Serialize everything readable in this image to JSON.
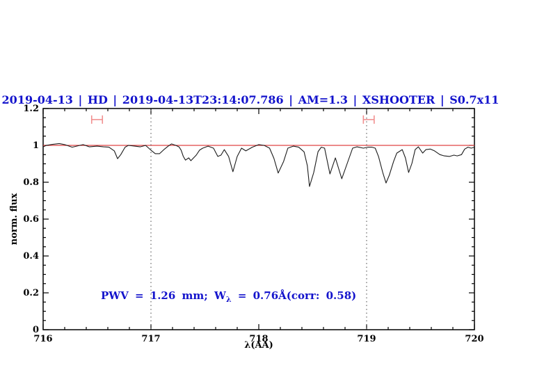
{
  "plot": {
    "title": "2019-04-13 | HD | 2019-04-13T23:14:07.786 | AM=1.3 | XSHOOTER | S0.7x11",
    "xlabel": "λ(AA)",
    "ylabel": "norm. flux",
    "annotation": {
      "part1": "PWV = 1.26 mm; W",
      "sub": "λ",
      "part2": " = 0.76Å(corr: 0.58)"
    },
    "colors": {
      "title_blue": "#1313cc",
      "annotation_blue": "#1313cc",
      "continuum_red": "#e04343",
      "marker_salmon": "#f19090",
      "spectrum_black": "#1b1b1b",
      "guide_gray": "#444444"
    }
  },
  "chart_data": {
    "type": "line",
    "title": "2019-04-13 | HD | 2019-04-13T23:14:07.786 | AM=1.3 | XSHOOTER | S0.7x11",
    "xlabel": "λ(AA)",
    "ylabel": "norm. flux",
    "xlim": [
      716,
      720
    ],
    "ylim": [
      0,
      1.2
    ],
    "grid": false,
    "x_ticks": {
      "values": [
        716,
        717,
        718,
        719,
        720
      ],
      "labels": [
        "716",
        "717",
        "718",
        "719",
        "720"
      ],
      "minor_step": 0.2
    },
    "y_ticks": {
      "values": [
        0,
        0.2,
        0.4,
        0.6,
        0.8,
        1,
        1.2
      ],
      "labels": [
        "0",
        "0.2",
        "0.4",
        "0.6",
        "0.8",
        "1",
        "1.2"
      ],
      "minor_step": 0.05
    },
    "continuum_level": 1.0,
    "guide_lines_x": [
      717,
      719
    ],
    "band_markers": [
      {
        "center": 716.5,
        "half_width": 0.05,
        "flux": 1.14
      },
      {
        "center": 719.02,
        "half_width": 0.05,
        "flux": 1.14
      }
    ],
    "series": [
      {
        "name": "normalized telluric spectrum",
        "x": [
          716.0,
          716.03,
          716.08,
          716.15,
          716.2,
          716.23,
          716.27,
          716.31,
          716.37,
          716.43,
          716.5,
          716.56,
          716.61,
          716.66,
          716.69,
          716.72,
          716.76,
          716.79,
          716.85,
          716.9,
          716.95,
          717.0,
          717.04,
          717.08,
          717.12,
          717.16,
          717.19,
          717.23,
          717.26,
          717.28,
          717.3,
          717.32,
          717.35,
          717.37,
          717.42,
          717.45,
          717.48,
          717.53,
          717.58,
          717.62,
          717.65,
          717.68,
          717.72,
          717.76,
          717.8,
          717.84,
          717.88,
          717.94,
          718.0,
          718.05,
          718.1,
          718.14,
          718.18,
          718.23,
          718.27,
          718.32,
          718.37,
          718.42,
          718.45,
          718.47,
          718.51,
          718.55,
          718.58,
          718.61,
          718.66,
          718.71,
          718.77,
          718.82,
          718.87,
          718.91,
          718.97,
          719.01,
          719.05,
          719.08,
          719.11,
          719.15,
          719.18,
          719.21,
          719.25,
          719.28,
          719.33,
          719.36,
          719.39,
          719.42,
          719.45,
          719.48,
          719.52,
          719.55,
          719.59,
          719.63,
          719.68,
          719.72,
          719.77,
          719.81,
          719.84,
          719.88,
          719.91,
          719.94,
          719.97,
          720.0
        ],
        "flux": [
          0.992,
          1.0,
          1.005,
          1.01,
          1.004,
          0.998,
          0.99,
          0.996,
          1.004,
          0.992,
          0.996,
          0.992,
          0.99,
          0.97,
          0.928,
          0.95,
          0.99,
          1.0,
          0.996,
          0.992,
          1.0,
          0.974,
          0.955,
          0.955,
          0.977,
          0.996,
          1.008,
          1.0,
          0.992,
          0.974,
          0.94,
          0.92,
          0.932,
          0.917,
          0.947,
          0.974,
          0.985,
          0.996,
          0.985,
          0.94,
          0.947,
          0.977,
          0.94,
          0.857,
          0.94,
          0.985,
          0.97,
          0.99,
          1.004,
          1.0,
          0.985,
          0.93,
          0.85,
          0.913,
          0.985,
          0.996,
          0.99,
          0.965,
          0.89,
          0.777,
          0.853,
          0.966,
          0.99,
          0.985,
          0.845,
          0.932,
          0.819,
          0.902,
          0.985,
          0.992,
          0.985,
          0.99,
          0.99,
          0.985,
          0.94,
          0.853,
          0.796,
          0.838,
          0.913,
          0.958,
          0.977,
          0.932,
          0.853,
          0.902,
          0.977,
          0.992,
          0.958,
          0.977,
          0.98,
          0.97,
          0.95,
          0.943,
          0.94,
          0.947,
          0.943,
          0.95,
          0.98,
          0.99,
          0.985,
          0.99
        ]
      }
    ]
  }
}
